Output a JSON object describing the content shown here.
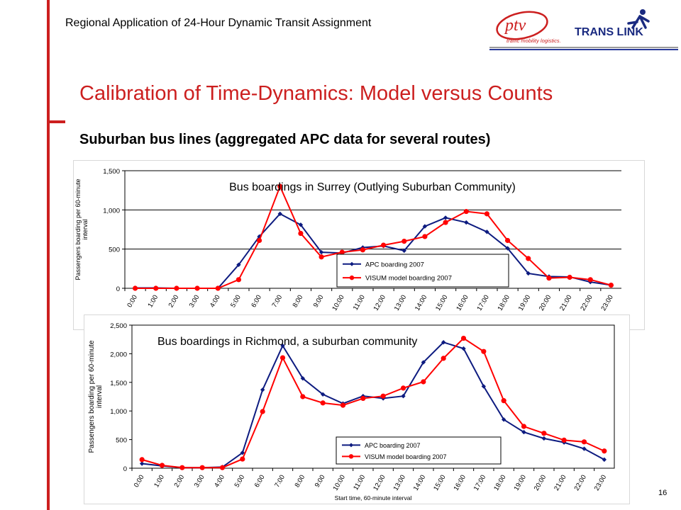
{
  "header": {
    "title": "Regional Application of 24-Hour Dynamic Transit Assignment"
  },
  "logos": {
    "ptv": {
      "mark": "ptv",
      "tagline": "traffic mobility logistics."
    },
    "translink": {
      "text": "TRANS LINK"
    }
  },
  "slide": {
    "title": "Calibration of Time-Dynamics: Model versus Counts",
    "subtitle": "Suburban bus lines (aggregated APC data for several routes)",
    "page_number": "16"
  },
  "colors": {
    "accent_red": "#cc1f1f",
    "apc_blue": "#0d1b80",
    "visum_red": "#ff0000"
  },
  "chart_data": [
    {
      "type": "line",
      "title": "Bus boardings in Surrey (Outlying Suburban Community)",
      "ylabel": "Passengers boarding per 60-minute interval",
      "xlabel": "",
      "ylim": [
        0,
        1500
      ],
      "yticks": [
        0,
        500,
        1000,
        1500
      ],
      "ytick_labels": [
        "0",
        "500",
        "1,000",
        "1,500"
      ],
      "categories": [
        "0:00",
        "1:00",
        "2:00",
        "3:00",
        "4:00",
        "5:00",
        "6:00",
        "7:00",
        "8:00",
        "9:00",
        "10:00",
        "11:00",
        "12:00",
        "13:00",
        "14:00",
        "15:00",
        "16:00",
        "17:00",
        "18:00",
        "19:00",
        "20:00",
        "21:00",
        "22:00",
        "23:00"
      ],
      "grid": "horizontal",
      "legend_position": "bottom-right",
      "series": [
        {
          "name": "APC boarding 2007",
          "color": "#0d1b80",
          "marker": "diamond",
          "values": [
            5,
            5,
            0,
            0,
            0,
            300,
            660,
            950,
            810,
            460,
            450,
            520,
            540,
            480,
            790,
            900,
            840,
            720,
            510,
            190,
            150,
            145,
            80,
            40
          ]
        },
        {
          "name": "VISUM model boarding 2007",
          "color": "#ff0000",
          "marker": "circle",
          "values": [
            0,
            0,
            0,
            0,
            0,
            110,
            610,
            1300,
            700,
            400,
            460,
            490,
            550,
            600,
            660,
            840,
            980,
            950,
            610,
            380,
            130,
            140,
            110,
            40
          ]
        }
      ]
    },
    {
      "type": "line",
      "title": "Bus boardings in Richmond, a suburban community",
      "ylabel": "Passengers boarding per 60-minute interval",
      "xlabel": "Start time, 60-minute interval",
      "ylim": [
        0,
        2500
      ],
      "yticks": [
        0,
        500,
        1000,
        1500,
        2000,
        2500
      ],
      "ytick_labels": [
        "0",
        "500",
        "1,000",
        "1,500",
        "2,000",
        "2,500"
      ],
      "categories": [
        "0:00",
        "1:00",
        "2:00",
        "3:00",
        "4:00",
        "5:00",
        "6:00",
        "7:00",
        "8:00",
        "9:00",
        "10:00",
        "11:00",
        "12:00",
        "13:00",
        "14:00",
        "15:00",
        "16:00",
        "17:00",
        "18:00",
        "19:00",
        "20:00",
        "21:00",
        "22:00",
        "23:00"
      ],
      "grid": "none",
      "legend_position": "bottom-right",
      "series": [
        {
          "name": "APC boarding 2007",
          "color": "#0d1b80",
          "marker": "diamond",
          "values": [
            80,
            40,
            10,
            10,
            20,
            270,
            1370,
            2140,
            1570,
            1290,
            1130,
            1260,
            1220,
            1260,
            1850,
            2200,
            2090,
            1430,
            850,
            630,
            520,
            450,
            340,
            150
          ]
        },
        {
          "name": "VISUM model boarding 2007",
          "color": "#ff0000",
          "marker": "circle",
          "values": [
            150,
            50,
            10,
            10,
            10,
            160,
            990,
            1930,
            1250,
            1140,
            1100,
            1220,
            1260,
            1400,
            1510,
            1920,
            2270,
            2040,
            1180,
            730,
            610,
            490,
            460,
            300
          ]
        }
      ]
    }
  ]
}
